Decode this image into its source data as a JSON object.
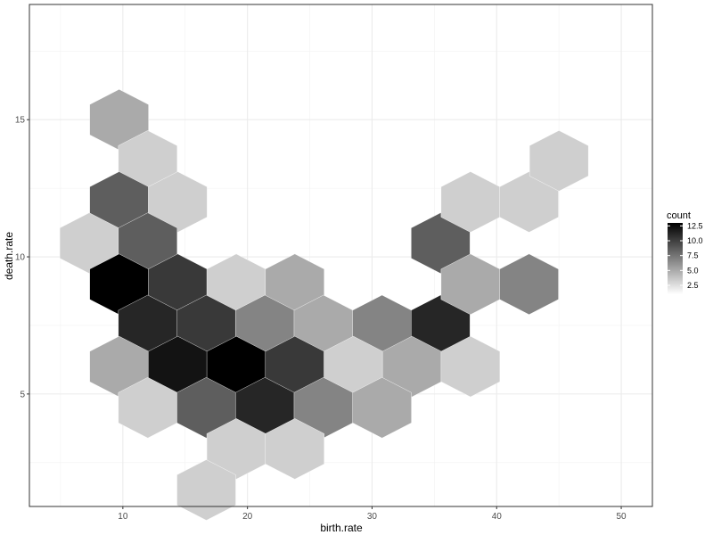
{
  "chart_data": {
    "type": "heatmap",
    "subtype": "hexbin",
    "xlabel": "birth.rate",
    "ylabel": "death.rate",
    "xlim": [
      2.5,
      52.5
    ],
    "ylim": [
      0.9,
      19.2
    ],
    "x_ticks": [
      10,
      20,
      30,
      40,
      50
    ],
    "y_ticks": [
      5,
      10,
      15
    ],
    "grid": true,
    "legend": {
      "title": "count",
      "position": "right",
      "ticks": [
        2.5,
        5.0,
        7.5,
        10.0,
        12.5
      ],
      "tick_labels": [
        "2.5",
        "5.0",
        "7.5",
        "10.0",
        "12.5"
      ],
      "range": [
        1,
        13
      ],
      "colors": {
        "low": "#ffffff",
        "high": "#000000"
      }
    },
    "bins": [
      {
        "x": 9.7,
        "y": 15.0,
        "count": 4
      },
      {
        "x": 12.0,
        "y": 13.5,
        "count": 2
      },
      {
        "x": 9.7,
        "y": 12.0,
        "count": 8
      },
      {
        "x": 14.4,
        "y": 12.0,
        "count": 2
      },
      {
        "x": 7.3,
        "y": 10.5,
        "count": 2
      },
      {
        "x": 12.0,
        "y": 10.5,
        "count": 8
      },
      {
        "x": 9.7,
        "y": 9.0,
        "count": 13
      },
      {
        "x": 14.4,
        "y": 9.0,
        "count": 10
      },
      {
        "x": 19.1,
        "y": 9.0,
        "count": 2
      },
      {
        "x": 23.8,
        "y": 9.0,
        "count": 4
      },
      {
        "x": 12.0,
        "y": 7.5,
        "count": 11
      },
      {
        "x": 16.7,
        "y": 7.5,
        "count": 10
      },
      {
        "x": 21.4,
        "y": 7.5,
        "count": 6
      },
      {
        "x": 26.1,
        "y": 7.5,
        "count": 4
      },
      {
        "x": 30.8,
        "y": 7.5,
        "count": 6
      },
      {
        "x": 35.5,
        "y": 7.5,
        "count": 11
      },
      {
        "x": 9.7,
        "y": 6.0,
        "count": 4
      },
      {
        "x": 14.4,
        "y": 6.0,
        "count": 12
      },
      {
        "x": 19.1,
        "y": 6.0,
        "count": 13
      },
      {
        "x": 23.8,
        "y": 6.0,
        "count": 10
      },
      {
        "x": 28.5,
        "y": 6.0,
        "count": 2
      },
      {
        "x": 33.2,
        "y": 6.0,
        "count": 4
      },
      {
        "x": 37.9,
        "y": 6.0,
        "count": 2
      },
      {
        "x": 12.0,
        "y": 4.5,
        "count": 2
      },
      {
        "x": 16.7,
        "y": 4.5,
        "count": 8
      },
      {
        "x": 21.4,
        "y": 4.5,
        "count": 11
      },
      {
        "x": 26.1,
        "y": 4.5,
        "count": 6
      },
      {
        "x": 30.8,
        "y": 4.5,
        "count": 4
      },
      {
        "x": 19.1,
        "y": 3.0,
        "count": 2
      },
      {
        "x": 23.8,
        "y": 3.0,
        "count": 2
      },
      {
        "x": 16.7,
        "y": 1.5,
        "count": 2
      },
      {
        "x": 35.5,
        "y": 10.5,
        "count": 8
      },
      {
        "x": 37.9,
        "y": 12.0,
        "count": 2
      },
      {
        "x": 42.6,
        "y": 12.0,
        "count": 2
      },
      {
        "x": 45.0,
        "y": 13.5,
        "count": 2
      },
      {
        "x": 37.9,
        "y": 9.0,
        "count": 4
      },
      {
        "x": 42.6,
        "y": 9.0,
        "count": 6
      }
    ]
  }
}
